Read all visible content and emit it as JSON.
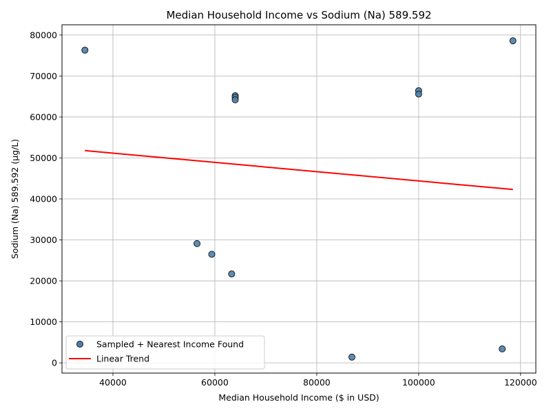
{
  "chart_data": {
    "type": "scatter",
    "title": "Median Household Income vs Sodium (Na) 589.592",
    "xlabel": "Median Household Income ($ in USD)",
    "ylabel": "Sodium (Na) 589.592 (µg/L)",
    "xlim": [
      30000,
      123000
    ],
    "ylim": [
      -2500,
      82500
    ],
    "xticks": [
      40000,
      60000,
      80000,
      100000,
      120000
    ],
    "yticks": [
      0,
      10000,
      20000,
      30000,
      40000,
      50000,
      60000,
      70000,
      80000
    ],
    "grid": true,
    "legend_position": "lower-left",
    "series": [
      {
        "name": "Sampled + Nearest Income Found",
        "color": "#4a7fad",
        "points": [
          {
            "x": 34500,
            "y": 76300
          },
          {
            "x": 56500,
            "y": 29100
          },
          {
            "x": 59400,
            "y": 26500
          },
          {
            "x": 63300,
            "y": 21700
          },
          {
            "x": 64000,
            "y": 65200
          },
          {
            "x": 64000,
            "y": 64800
          },
          {
            "x": 64000,
            "y": 64200
          },
          {
            "x": 86900,
            "y": 1400
          },
          {
            "x": 100000,
            "y": 66400
          },
          {
            "x": 100000,
            "y": 65600
          },
          {
            "x": 116400,
            "y": 3400
          },
          {
            "x": 118500,
            "y": 78600
          }
        ]
      }
    ],
    "trend": {
      "name": "Linear Trend",
      "color": "#ff0000",
      "x": [
        34500,
        118500
      ],
      "y": [
        51800,
        42300
      ]
    }
  }
}
